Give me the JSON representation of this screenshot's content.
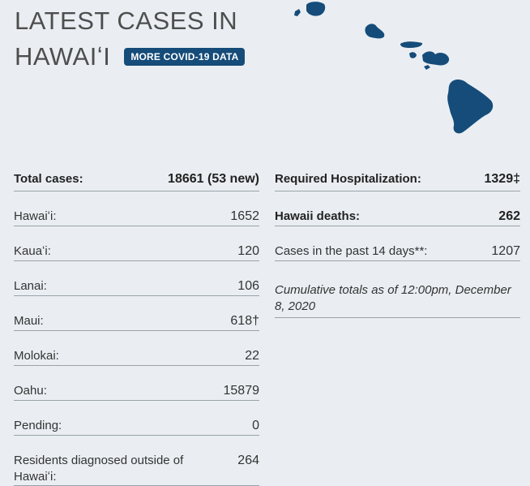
{
  "header": {
    "title_line1": "LATEST CASES IN",
    "title_line2": "HAWAIʻI",
    "cta_label": "MORE COVID-19 DATA"
  },
  "map": {
    "icon": "hawaii-islands-map-icon",
    "color": "#154c79"
  },
  "left_rows": [
    {
      "label": "Total cases:",
      "value": "18661 (53 new)"
    },
    {
      "label": "Hawaiʻi:",
      "value": "1652"
    },
    {
      "label": "Kauaʻi:",
      "value": "120"
    },
    {
      "label": "Lanai:",
      "value": "106"
    },
    {
      "label": "Maui:",
      "value": "618†"
    },
    {
      "label": "Molokai:",
      "value": "22"
    },
    {
      "label": "Oahu:",
      "value": "15879"
    },
    {
      "label": "Pending:",
      "value": "0"
    },
    {
      "label": "Residents diagnosed outside of Hawaiʻi:",
      "value": "264"
    }
  ],
  "right_rows": [
    {
      "label": "Required Hospitalization:",
      "value": "1329‡"
    },
    {
      "label": "Hawaii deaths:",
      "value": "262"
    },
    {
      "label": "Cases in the past 14 days**:",
      "value": "1207"
    }
  ],
  "note": "Cumulative totals as of 12:00pm, December 8, 2020"
}
